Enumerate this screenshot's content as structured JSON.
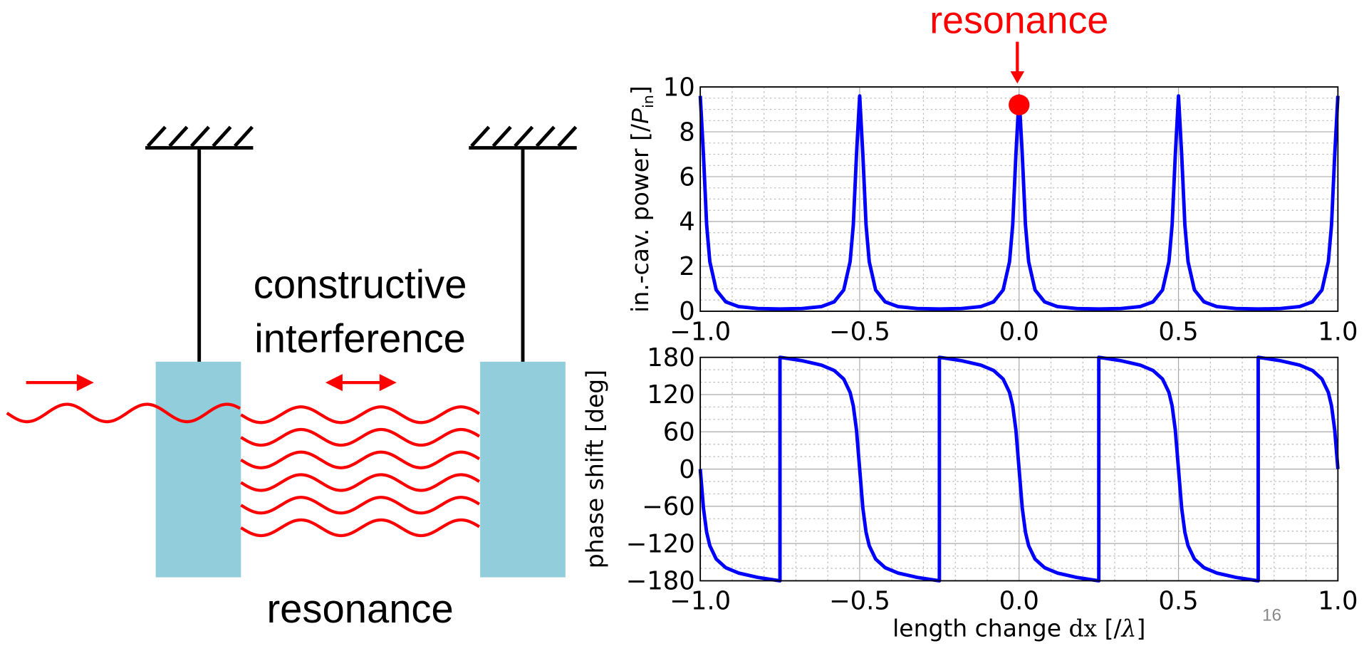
{
  "slide": {
    "diagram_text": [
      "constructive",
      "interference"
    ],
    "diagram_caption": "resonance",
    "page_number": "16"
  },
  "chart_data": [
    {
      "type": "line",
      "y_label": [
        "in.-cav. power [/",
        "P",
        "in",
        "]"
      ],
      "annotation": {
        "text": "resonance",
        "x": 0,
        "y": 9.2,
        "color": "#ff0000"
      },
      "xlim": [
        -1,
        1
      ],
      "xticks": [
        {
          "value": -1,
          "label": "−1.0"
        },
        {
          "value": -0.5,
          "label": "−0.5"
        },
        {
          "value": 0,
          "label": "0.0"
        },
        0.5,
        {
          "value": 1,
          "label": "1.0"
        }
      ],
      "ylim": [
        0,
        10
      ],
      "yticks": [
        0,
        2,
        4,
        6,
        8,
        10
      ],
      "grid": true,
      "minor_grid": true,
      "series": [
        {
          "color": "#0000ff",
          "x": [
            -1,
            -0.99,
            -0.98,
            -0.97,
            -0.95,
            -0.92,
            -0.88,
            -0.82,
            -0.75,
            -0.68,
            -0.62,
            -0.58,
            -0.55,
            -0.53,
            -0.52,
            -0.51,
            -0.5,
            -0.49,
            -0.48,
            -0.47,
            -0.45,
            -0.42,
            -0.38,
            -0.32,
            -0.25,
            -0.18,
            -0.12,
            -0.08,
            -0.05,
            -0.03,
            -0.02,
            -0.01,
            0,
            0.01,
            0.02,
            0.03,
            0.05,
            0.08,
            0.12,
            0.18,
            0.25,
            0.32,
            0.38,
            0.42,
            0.45,
            0.47,
            0.48,
            0.49,
            0.5,
            0.51,
            0.52,
            0.53,
            0.55,
            0.58,
            0.62,
            0.68,
            0.75,
            0.82,
            0.88,
            0.92,
            0.95,
            0.97,
            0.98,
            0.99,
            1
          ],
          "values": [
            9.6,
            6.98,
            3.85,
            2.21,
            0.95,
            0.42,
            0.21,
            0.12,
            0.1,
            0.12,
            0.21,
            0.42,
            0.95,
            2.21,
            3.85,
            6.98,
            9.6,
            6.98,
            3.85,
            2.21,
            0.95,
            0.42,
            0.21,
            0.12,
            0.1,
            0.12,
            0.21,
            0.42,
            0.95,
            2.21,
            3.85,
            6.98,
            9.6,
            6.98,
            3.85,
            2.21,
            0.95,
            0.42,
            0.21,
            0.12,
            0.1,
            0.12,
            0.21,
            0.42,
            0.95,
            2.21,
            3.85,
            6.98,
            9.6,
            6.98,
            3.85,
            2.21,
            0.95,
            0.42,
            0.21,
            0.12,
            0.1,
            0.12,
            0.21,
            0.42,
            0.95,
            2.21,
            3.85,
            6.98,
            9.6
          ]
        }
      ]
    },
    {
      "type": "line",
      "y_label": [
        "phase shift [deg]"
      ],
      "x_label": [
        "length change ",
        "dx",
        " [/",
        "λ",
        "]"
      ],
      "xlim": [
        -1,
        1
      ],
      "xticks": [
        {
          "value": -1,
          "label": "−1.0"
        },
        {
          "value": -0.5,
          "label": "−0.5"
        },
        {
          "value": 0,
          "label": "0.0"
        },
        0.5,
        {
          "value": 1,
          "label": "1.0"
        }
      ],
      "ylim": [
        -180,
        180
      ],
      "yticks": [
        {
          "value": -180,
          "label": "−180"
        },
        {
          "value": -120,
          "label": "−120"
        },
        {
          "value": -60,
          "label": "−60"
        },
        0,
        60,
        120,
        180
      ],
      "grid": true,
      "minor_grid": true,
      "series": [
        {
          "color": "#0000ff",
          "x": [
            -1,
            -0.99,
            -0.98,
            -0.97,
            -0.95,
            -0.92,
            -0.88,
            -0.82,
            -0.76,
            -0.75,
            -0.75,
            -0.74,
            -0.68,
            -0.62,
            -0.58,
            -0.55,
            -0.53,
            -0.52,
            -0.51,
            -0.5,
            -0.49,
            -0.48,
            -0.47,
            -0.45,
            -0.42,
            -0.38,
            -0.32,
            -0.26,
            -0.25,
            -0.25,
            -0.24,
            -0.18,
            -0.12,
            -0.08,
            -0.05,
            -0.03,
            -0.02,
            -0.01,
            0,
            0.01,
            0.02,
            0.03,
            0.05,
            0.08,
            0.12,
            0.18,
            0.24,
            0.25,
            0.25,
            0.26,
            0.32,
            0.38,
            0.42,
            0.45,
            0.47,
            0.48,
            0.49,
            0.5,
            0.51,
            0.52,
            0.53,
            0.55,
            0.58,
            0.62,
            0.68,
            0.74,
            0.75,
            0.75,
            0.76,
            0.82,
            0.88,
            0.92,
            0.95,
            0.97,
            0.98,
            0.99,
            1
          ],
          "values": [
            0,
            -63,
            -101.8,
            -123.5,
            -145,
            -158.9,
            -167.5,
            -174.5,
            -179.3,
            -180,
            180,
            179.3,
            174.5,
            167.5,
            158.9,
            145,
            123.5,
            101.8,
            63,
            0,
            -63,
            -101.8,
            -123.5,
            -145,
            -158.9,
            -167.5,
            -174.5,
            -179.3,
            -180,
            180,
            179.3,
            174.5,
            167.5,
            158.9,
            145,
            123.5,
            101.8,
            63,
            0,
            -63,
            -101.8,
            -123.5,
            -145,
            -158.9,
            -167.5,
            -174.5,
            -179.3,
            -180,
            180,
            179.3,
            174.5,
            167.5,
            158.9,
            145,
            123.5,
            101.8,
            63,
            0,
            -63,
            -101.8,
            -123.5,
            -145,
            -158.9,
            -167.5,
            -174.5,
            -179.3,
            -180,
            180,
            179.3,
            174.5,
            167.5,
            158.9,
            145,
            123.5,
            101.8,
            63,
            0
          ]
        }
      ]
    }
  ]
}
